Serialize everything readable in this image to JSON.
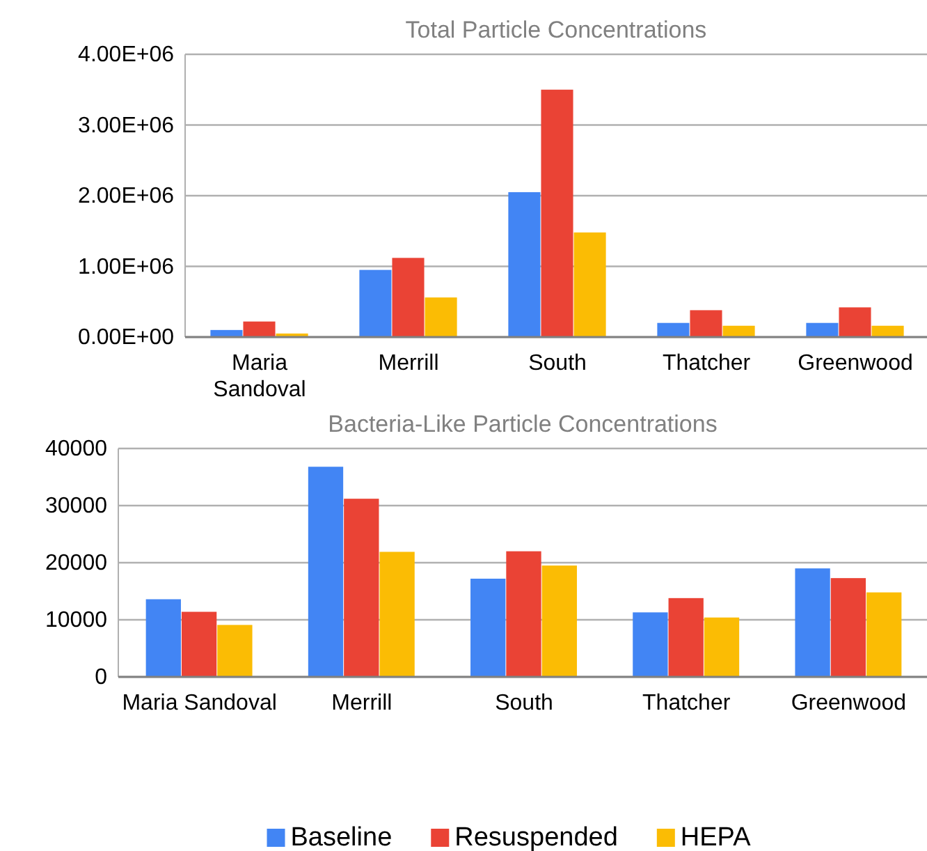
{
  "chart_data": [
    {
      "type": "bar",
      "title": "Total Particle Concentrations",
      "categories": [
        "Maria Sandoval",
        "Merrill",
        "South",
        "Thatcher",
        "Greenwood"
      ],
      "series": [
        {
          "color": "#4285f4",
          "values": [
            100000,
            950000,
            2050000,
            200000,
            200000
          ]
        },
        {
          "color": "#ea4335",
          "values": [
            220000,
            1120000,
            3500000,
            380000,
            420000
          ]
        },
        {
          "color": "#fbbc04",
          "values": [
            50000,
            560000,
            1480000,
            160000,
            160000
          ]
        }
      ],
      "ylim": [
        0,
        4000000
      ],
      "yticks": [
        {
          "value": 0,
          "label": "0.00E+00"
        },
        {
          "value": 1000000,
          "label": "1.00E+06"
        },
        {
          "value": 2000000,
          "label": "2.00E+06"
        },
        {
          "value": 3000000,
          "label": "3.00E+06"
        },
        {
          "value": 4000000,
          "label": "4.00E+06"
        }
      ],
      "grid": "y"
    },
    {
      "type": "bar",
      "title": "Bacteria-Like Particle Concentrations",
      "categories": [
        "Maria Sandoval",
        "Merrill",
        "South",
        "Thatcher",
        "Greenwood"
      ],
      "series": [
        {
          "name": "Baseline",
          "color": "#4285f4",
          "values": [
            13600,
            36800,
            17200,
            11300,
            19000
          ]
        },
        {
          "name": "Resuspended",
          "color": "#ea4335",
          "values": [
            11400,
            31200,
            22000,
            13800,
            17300
          ]
        },
        {
          "name": "HEPA",
          "color": "#fbbc04",
          "values": [
            9100,
            21900,
            19500,
            10400,
            14800
          ]
        }
      ],
      "ylim": [
        0,
        40000
      ],
      "yticks": [
        0,
        10000,
        20000,
        30000,
        40000
      ],
      "grid": "y",
      "legend": "bottom"
    }
  ]
}
